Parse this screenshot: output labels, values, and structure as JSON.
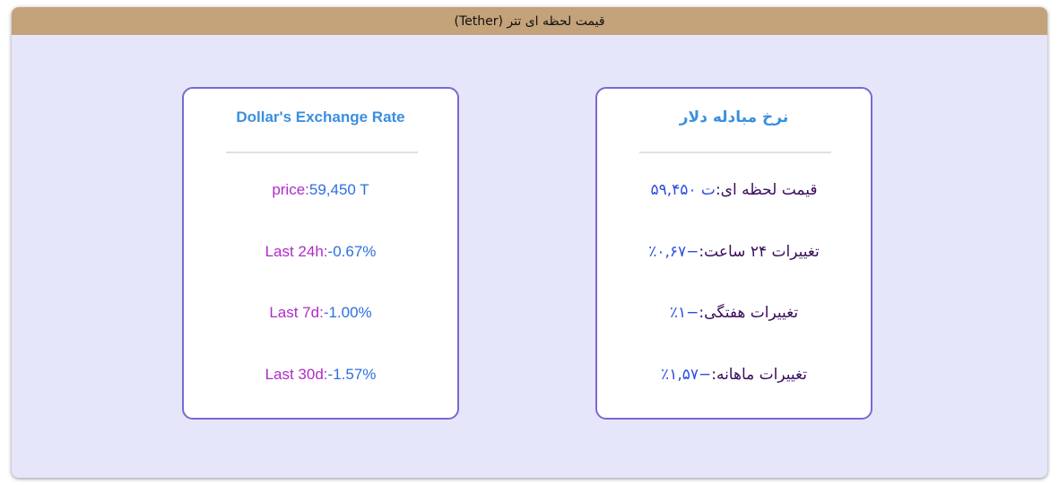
{
  "window": {
    "title": "قیمت لحظه ای تتر (Tether)"
  },
  "card_en": {
    "title": "Dollar's Exchange Rate",
    "rows": [
      {
        "label": "price:",
        "value": "59,450 T"
      },
      {
        "label": "Last 24h:",
        "value": "-0.67%"
      },
      {
        "label": "Last 7d:",
        "value": "-1.00%"
      },
      {
        "label": "Last 30d:",
        "value": "-1.57%"
      }
    ]
  },
  "card_fa": {
    "title": "نرخ مبادله دلار",
    "rows": [
      {
        "label": "قیمت لحظه ای:",
        "value": "ت ۵۹,۴۵۰"
      },
      {
        "label": "تغییرات ۲۴ ساعت:",
        "value": "−۰,۶۷٪"
      },
      {
        "label": "تغییرات هفتگی:",
        "value": "−۱٪"
      },
      {
        "label": "تغییرات ماهانه:",
        "value": "−۱,۵۷٪"
      }
    ]
  }
}
